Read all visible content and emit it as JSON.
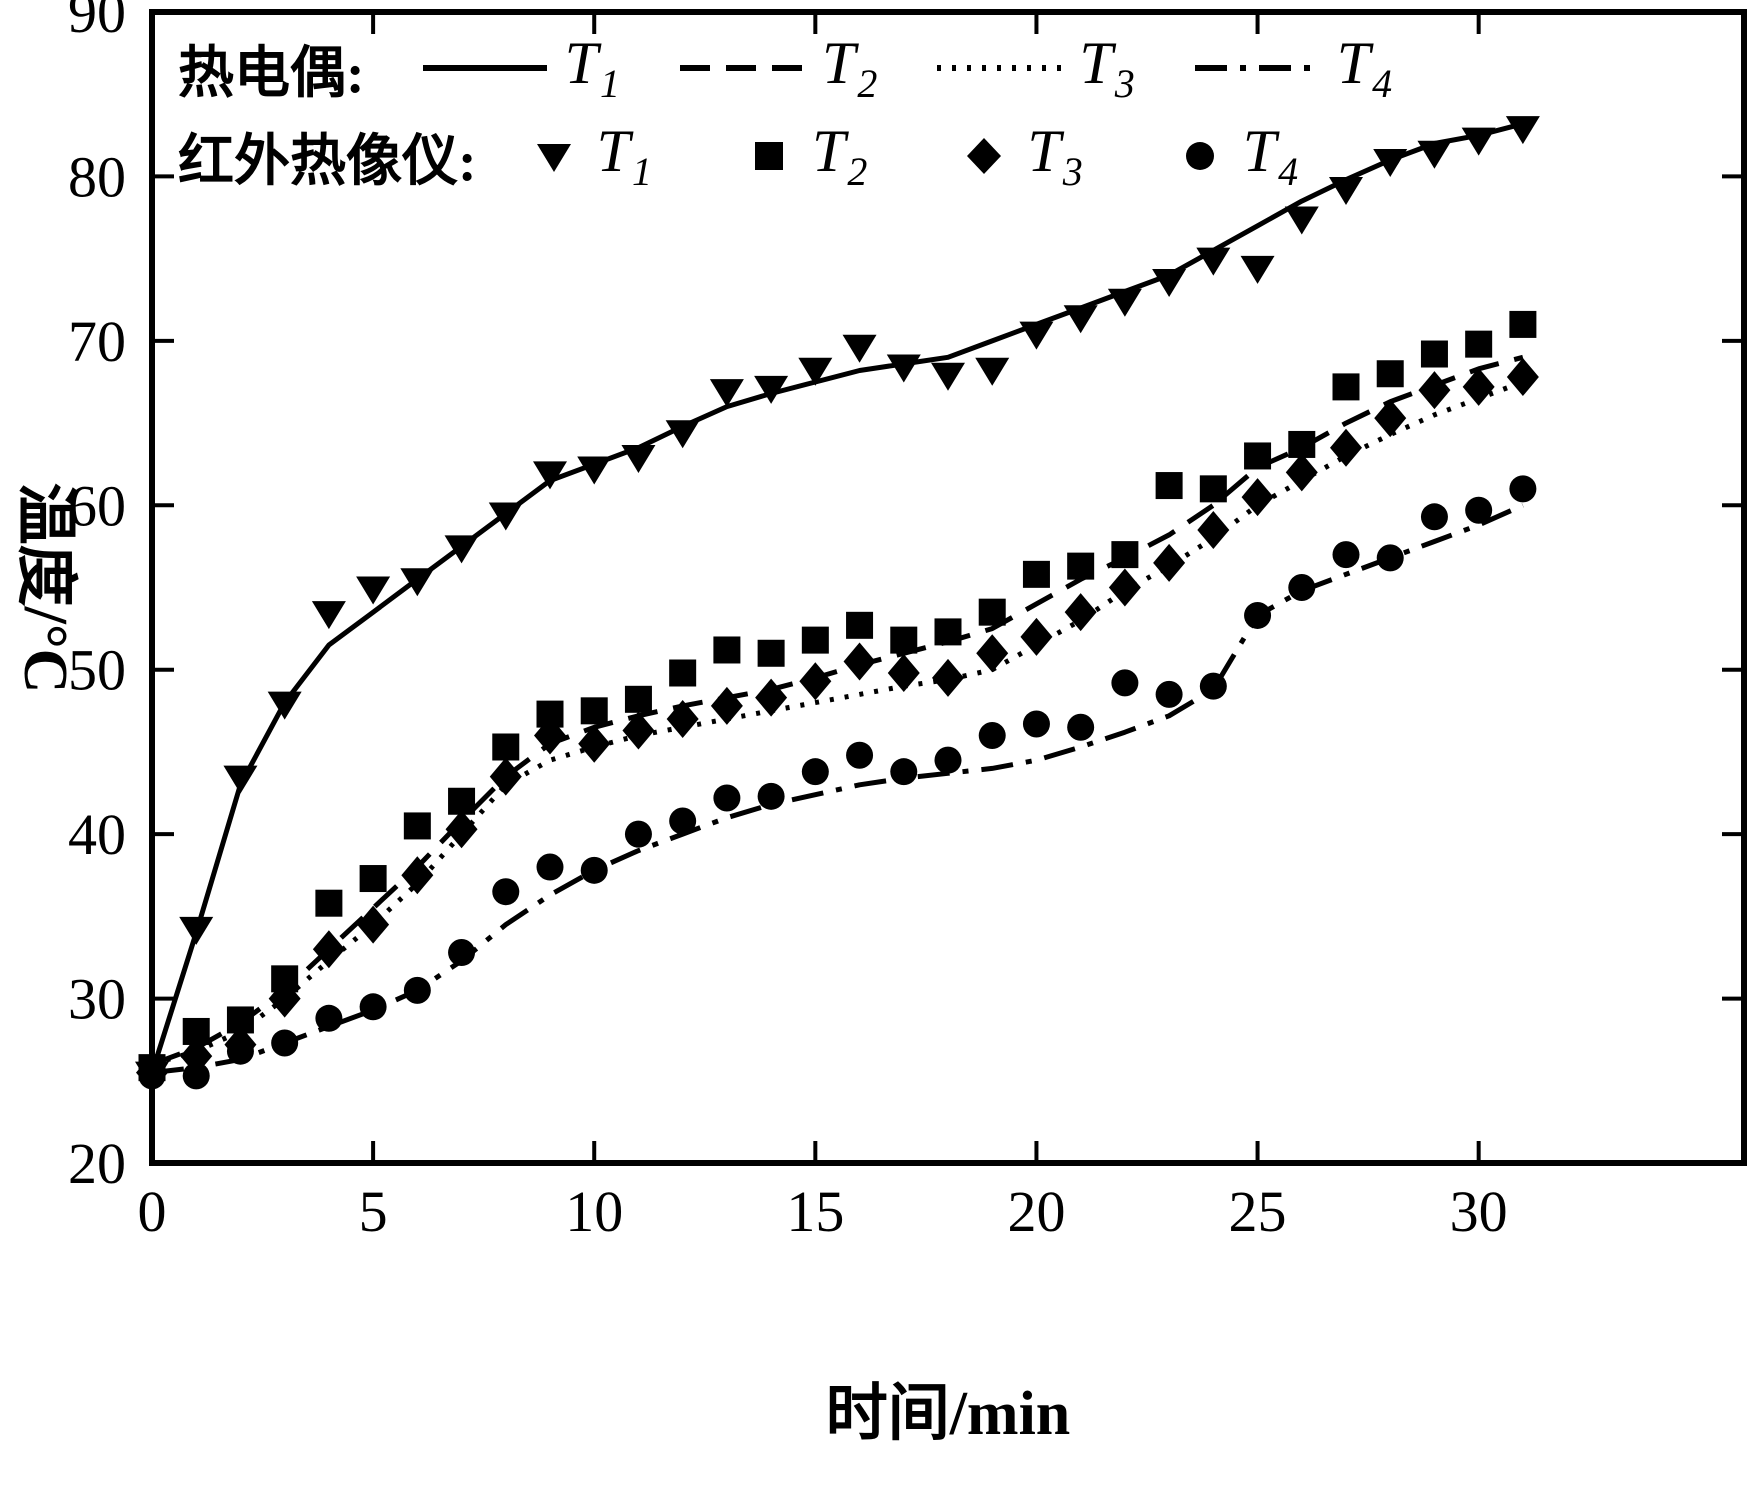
{
  "legend": {
    "row1_title": "热电偶:",
    "row2_title": "红外热像仪:",
    "labels": [
      {
        "base": "T",
        "sub": "1"
      },
      {
        "base": "T",
        "sub": "2"
      },
      {
        "base": "T",
        "sub": "3"
      },
      {
        "base": "T",
        "sub": "4"
      }
    ]
  },
  "chart_data": {
    "type": "line+scatter",
    "title": "",
    "xlabel": "时间/min",
    "ylabel": "温度/°C",
    "xlim": [
      0,
      36
    ],
    "ylim": [
      20,
      90
    ],
    "x_ticks": [
      0,
      5,
      10,
      15,
      20,
      25,
      30
    ],
    "y_ticks": [
      20,
      30,
      40,
      50,
      60,
      70,
      80,
      90
    ],
    "grid": false,
    "legend_position": "top-left inside",
    "x": [
      0,
      1,
      2,
      3,
      4,
      5,
      6,
      7,
      8,
      9,
      10,
      11,
      12,
      13,
      14,
      15,
      16,
      17,
      18,
      19,
      20,
      21,
      22,
      23,
      24,
      25,
      26,
      27,
      28,
      29,
      30,
      31
    ],
    "series": [
      {
        "id": "t1-line",
        "name": "T1 热电偶",
        "kind": "line",
        "line_style": "solid",
        "y": [
          25.5,
          34,
          43,
          48,
          51.5,
          53.5,
          55.5,
          57.5,
          59.5,
          61.5,
          62.5,
          63.5,
          64.8,
          66,
          66.8,
          67.5,
          68.2,
          68.6,
          69,
          70,
          71,
          72,
          73,
          74,
          75.5,
          77,
          78.5,
          79.8,
          81,
          82,
          82.5,
          83.2
        ]
      },
      {
        "id": "t2-line",
        "name": "T2 热电偶",
        "kind": "line",
        "line_style": "dashed",
        "y": [
          26,
          27,
          28.5,
          30.5,
          33,
          35.5,
          38,
          40.8,
          43.5,
          45.5,
          46.5,
          47.2,
          47.8,
          48.3,
          48.8,
          49.5,
          50.3,
          51,
          51.7,
          52.5,
          54,
          55.5,
          56.8,
          58.2,
          60,
          62.3,
          63.5,
          65,
          66.3,
          67.3,
          68.3,
          69
        ]
      },
      {
        "id": "t3-line",
        "name": "T3 热电偶",
        "kind": "line",
        "line_style": "dotted",
        "y": [
          26,
          26.8,
          28,
          30,
          32.3,
          34.5,
          37,
          40,
          43,
          44.5,
          45.3,
          46,
          46.5,
          47,
          47.5,
          48,
          48.5,
          49,
          49.4,
          50,
          51.5,
          53,
          54.8,
          56.3,
          58,
          60,
          61.5,
          63,
          64.3,
          65.5,
          66.5,
          67.5
        ]
      },
      {
        "id": "t4-line",
        "name": "T4 热电偶",
        "kind": "line",
        "line_style": "dashdot",
        "y": [
          25.5,
          25.8,
          26.3,
          27.3,
          28.3,
          29.3,
          30.5,
          32.3,
          34.5,
          36.3,
          37.8,
          39,
          40,
          41,
          41.8,
          42.4,
          43,
          43.4,
          43.7,
          44,
          44.5,
          45.3,
          46.2,
          47.2,
          48.8,
          53.3,
          54.8,
          55.8,
          56.8,
          57.8,
          58.8,
          60
        ]
      },
      {
        "id": "t1-ir",
        "name": "T1 红外热像仪",
        "kind": "scatter",
        "marker": "triangle-down",
        "y": [
          25.5,
          34.3,
          43.5,
          48,
          53.5,
          55,
          55.5,
          57.5,
          59.5,
          62,
          62.3,
          63,
          64.5,
          67,
          67.2,
          68.3,
          69.7,
          68.5,
          68,
          68.3,
          70.5,
          71.5,
          72.5,
          73.7,
          75,
          74.5,
          77.5,
          79.3,
          81,
          81.5,
          82.3,
          83
        ]
      },
      {
        "id": "t2-ir",
        "name": "T2 红外热像仪",
        "kind": "scatter",
        "marker": "square",
        "y": [
          25.8,
          28,
          28.7,
          31.2,
          35.8,
          37.3,
          40.5,
          42,
          45.3,
          47.3,
          47.5,
          48.2,
          49.8,
          51.2,
          51,
          51.8,
          52.7,
          51.8,
          52.3,
          53.5,
          55.8,
          56.3,
          57,
          61.2,
          61,
          63,
          63.7,
          67.2,
          68,
          69.2,
          69.8,
          71
        ]
      },
      {
        "id": "t3-ir",
        "name": "T3 红外热像仪",
        "kind": "scatter",
        "marker": "diamond",
        "y": [
          25.5,
          26.5,
          27.2,
          30,
          33,
          34.5,
          37.5,
          40.3,
          43.5,
          46,
          45.5,
          46.3,
          47,
          47.8,
          48.3,
          49.3,
          50.5,
          49.8,
          49.5,
          51,
          52,
          53.5,
          55,
          56.5,
          58.5,
          60.5,
          62,
          63.5,
          65.3,
          67,
          67.2,
          67.8
        ]
      },
      {
        "id": "t4-ir",
        "name": "T4 红外热像仪",
        "kind": "scatter",
        "marker": "circle",
        "y": [
          25.3,
          25.3,
          26.8,
          27.3,
          28.8,
          29.5,
          30.5,
          32.8,
          36.5,
          38,
          37.8,
          40,
          40.8,
          42.2,
          42.3,
          43.8,
          44.8,
          43.8,
          44.5,
          46,
          46.7,
          46.5,
          49.2,
          48.5,
          49,
          53.3,
          55,
          57,
          56.8,
          59.3,
          59.7,
          61
        ]
      }
    ]
  }
}
